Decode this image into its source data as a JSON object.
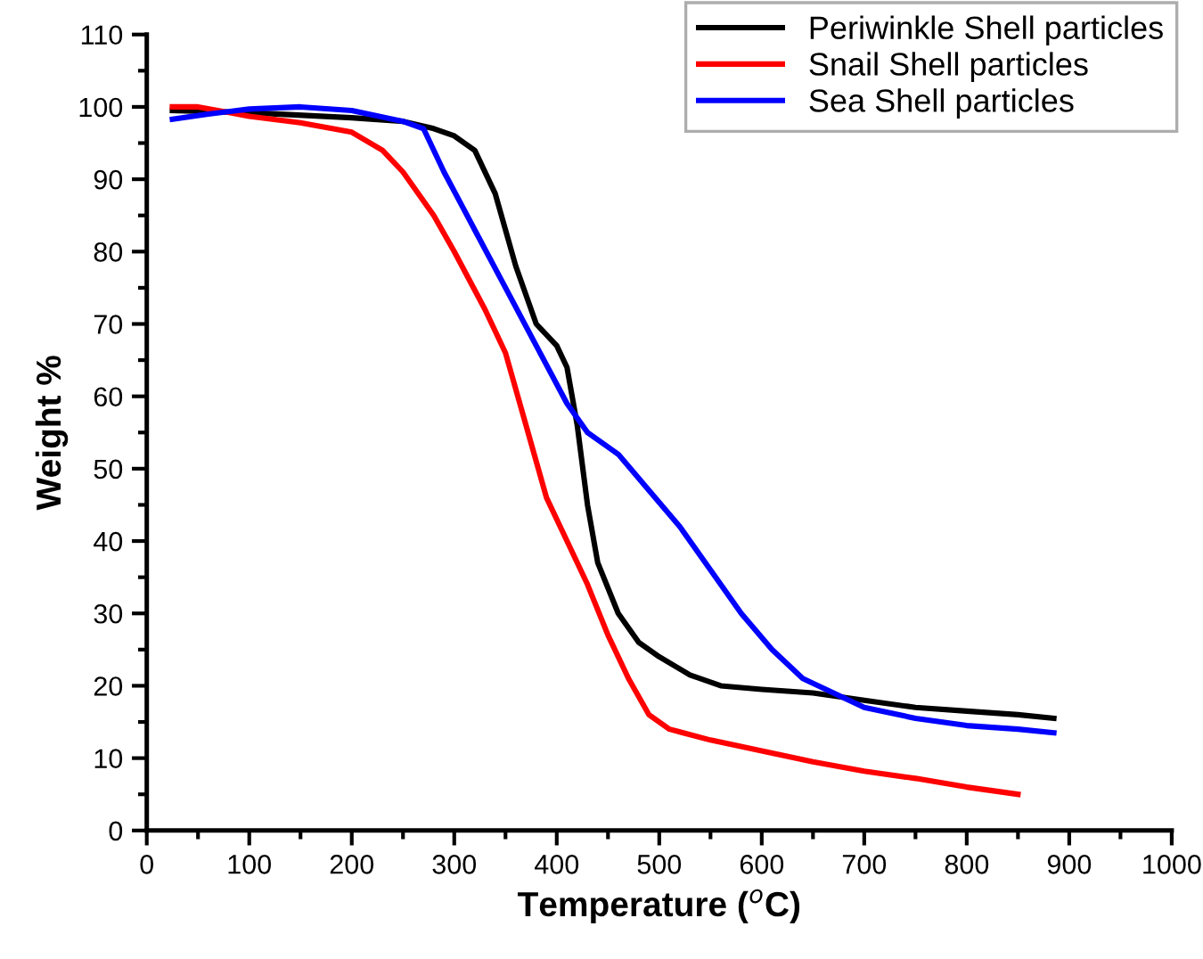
{
  "chart_data": {
    "type": "line",
    "xlabel": "Temperature ($^{o}$C)",
    "ylabel": "Weight %",
    "xlim": [
      0,
      1000
    ],
    "ylim": [
      0,
      110
    ],
    "xticks": [
      0,
      100,
      200,
      300,
      400,
      500,
      600,
      700,
      800,
      900,
      1000
    ],
    "yticks": [
      0,
      10,
      20,
      30,
      40,
      50,
      60,
      70,
      80,
      90,
      100,
      110
    ],
    "grid": false,
    "legend": "top right",
    "marker": "none",
    "line_style": "solid",
    "series": [
      {
        "name": "Periwinkle Shell particles",
        "color": "#000000",
        "x": [
          25,
          100,
          200,
          250,
          280,
          300,
          320,
          340,
          360,
          380,
          400,
          410,
          420,
          430,
          440,
          460,
          480,
          500,
          530,
          560,
          600,
          650,
          700,
          750,
          800,
          850,
          885
        ],
        "values": [
          99.5,
          99.2,
          98.5,
          98,
          97,
          96,
          94,
          88,
          78,
          70,
          67,
          64,
          56,
          45,
          37,
          30,
          26,
          24,
          21.5,
          20,
          19.5,
          19,
          18,
          17,
          16.5,
          16,
          15.5
        ]
      },
      {
        "name": "Snail Shell particles",
        "color": "#ff0000",
        "x": [
          25,
          50,
          100,
          150,
          200,
          230,
          250,
          280,
          300,
          330,
          350,
          370,
          390,
          410,
          430,
          450,
          470,
          490,
          510,
          550,
          600,
          650,
          700,
          750,
          800,
          850
        ],
        "values": [
          100,
          100,
          98.7,
          97.8,
          96.5,
          94,
          91,
          85,
          80,
          72,
          66,
          56,
          46,
          40,
          34,
          27,
          21,
          16,
          14,
          12.5,
          11,
          9.5,
          8.2,
          7.2,
          6,
          5
        ]
      },
      {
        "name": "Sea Shell particles",
        "color": "#0000ff",
        "x": [
          25,
          60,
          100,
          150,
          200,
          250,
          270,
          290,
          320,
          350,
          380,
          410,
          430,
          460,
          490,
          520,
          550,
          580,
          610,
          640,
          670,
          700,
          750,
          800,
          850,
          885
        ],
        "values": [
          98.3,
          99,
          99.7,
          100,
          99.5,
          98,
          97,
          91,
          83,
          75,
          67,
          59,
          55,
          52,
          47,
          42,
          36,
          30,
          25,
          21,
          19,
          17,
          15.5,
          14.5,
          14,
          13.5
        ]
      }
    ]
  }
}
